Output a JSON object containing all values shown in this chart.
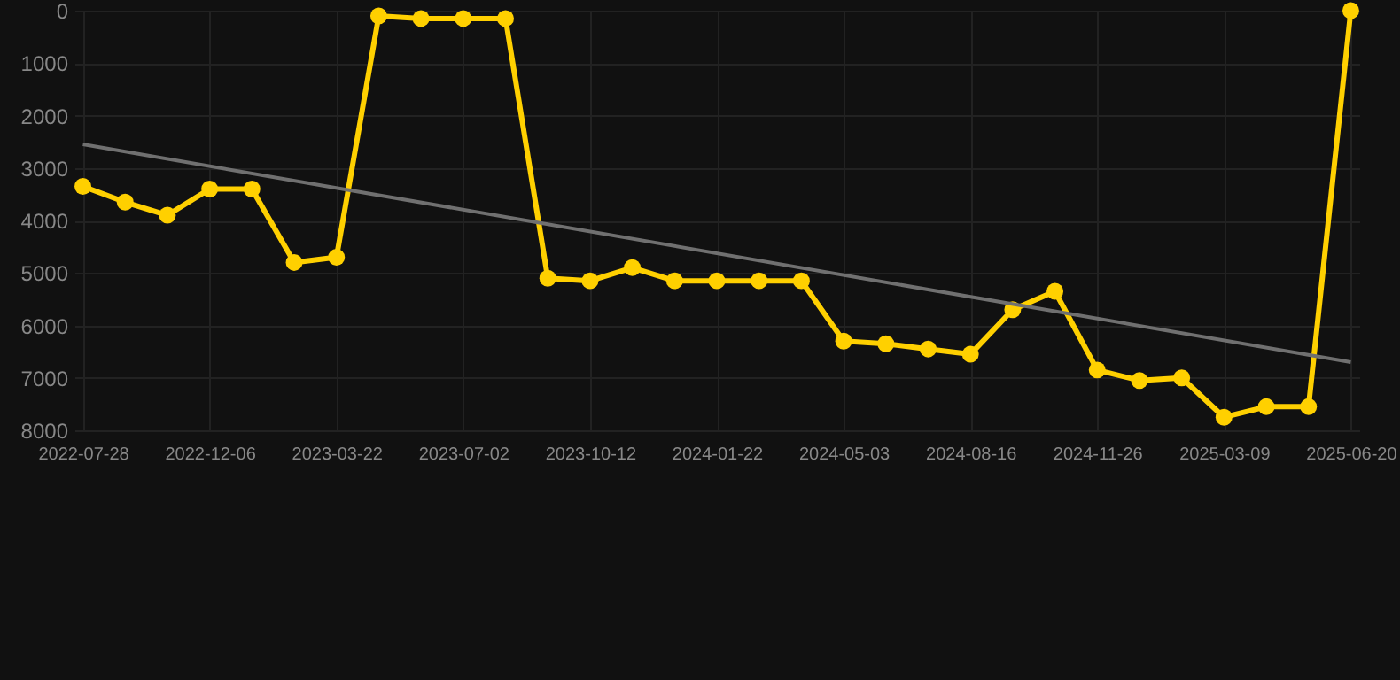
{
  "chart_data": {
    "type": "line",
    "categories": [
      "2022-07-28",
      null,
      null,
      "2022-12-06",
      null,
      null,
      "2023-03-22",
      null,
      null,
      "2023-07-02",
      null,
      null,
      "2023-10-12",
      null,
      null,
      "2024-01-22",
      null,
      null,
      "2024-05-03",
      null,
      null,
      "2024-08-16",
      null,
      null,
      "2024-11-26",
      null,
      null,
      "2025-03-09",
      null,
      null,
      "2025-06-20"
    ],
    "series": [
      {
        "color": "#ffd000",
        "marker": "circle",
        "values": [
          3350,
          3650,
          3900,
          3400,
          3400,
          4800,
          4700,
          100,
          150,
          150,
          150,
          5100,
          5150,
          4900,
          5150,
          5150,
          5150,
          5150,
          6300,
          6350,
          6450,
          6550,
          5700,
          5350,
          6850,
          7050,
          7000,
          7750,
          7550,
          7550,
          0
        ]
      },
      {
        "type": "line",
        "color": "#707070",
        "marker": "none",
        "values": [
          2550,
          null,
          null,
          null,
          null,
          null,
          null,
          null,
          null,
          null,
          null,
          null,
          null,
          null,
          null,
          null,
          null,
          null,
          null,
          null,
          null,
          null,
          null,
          null,
          null,
          null,
          null,
          null,
          null,
          null,
          6700
        ]
      }
    ],
    "ylim": [
      8000,
      0
    ],
    "yticks": [
      0,
      1000,
      2000,
      3000,
      4000,
      5000,
      6000,
      7000,
      8000
    ],
    "grid": true
  }
}
